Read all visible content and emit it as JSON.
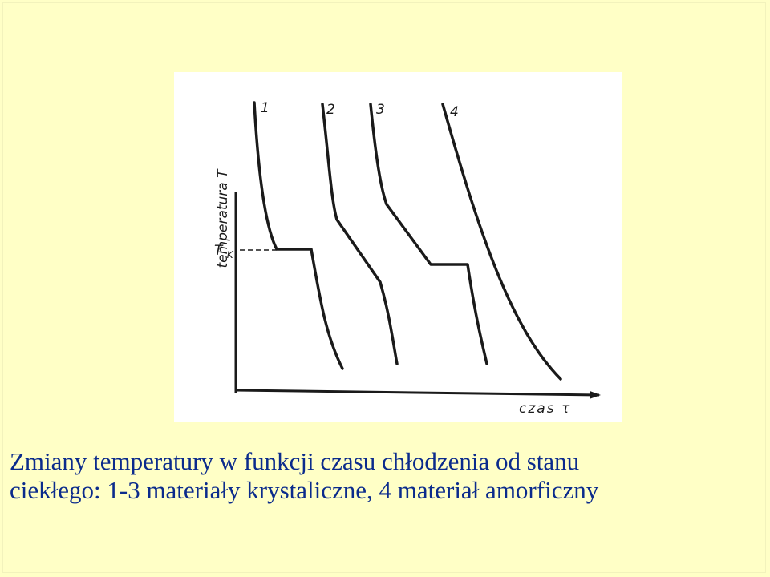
{
  "figure": {
    "y_axis_label": "temperatura T",
    "x_axis_label": "czas τ",
    "tk_label_main": "T",
    "tk_label_sub": "K",
    "curves": [
      {
        "label": "1",
        "type": "crystalline"
      },
      {
        "label": "2",
        "type": "crystalline"
      },
      {
        "label": "3",
        "type": "crystalline"
      },
      {
        "label": "4",
        "type": "amorphous"
      }
    ]
  },
  "caption": {
    "line1": "Zmiany temperatury w funkcji czasu chłodzenia od stanu",
    "line2": "ciekłego: 1-3 materiały krystaliczne, 4 materiał amorficzny"
  },
  "colors": {
    "background": "#ffffc6",
    "caption_text": "#0b2b8c",
    "ink": "#1a1a1a"
  }
}
